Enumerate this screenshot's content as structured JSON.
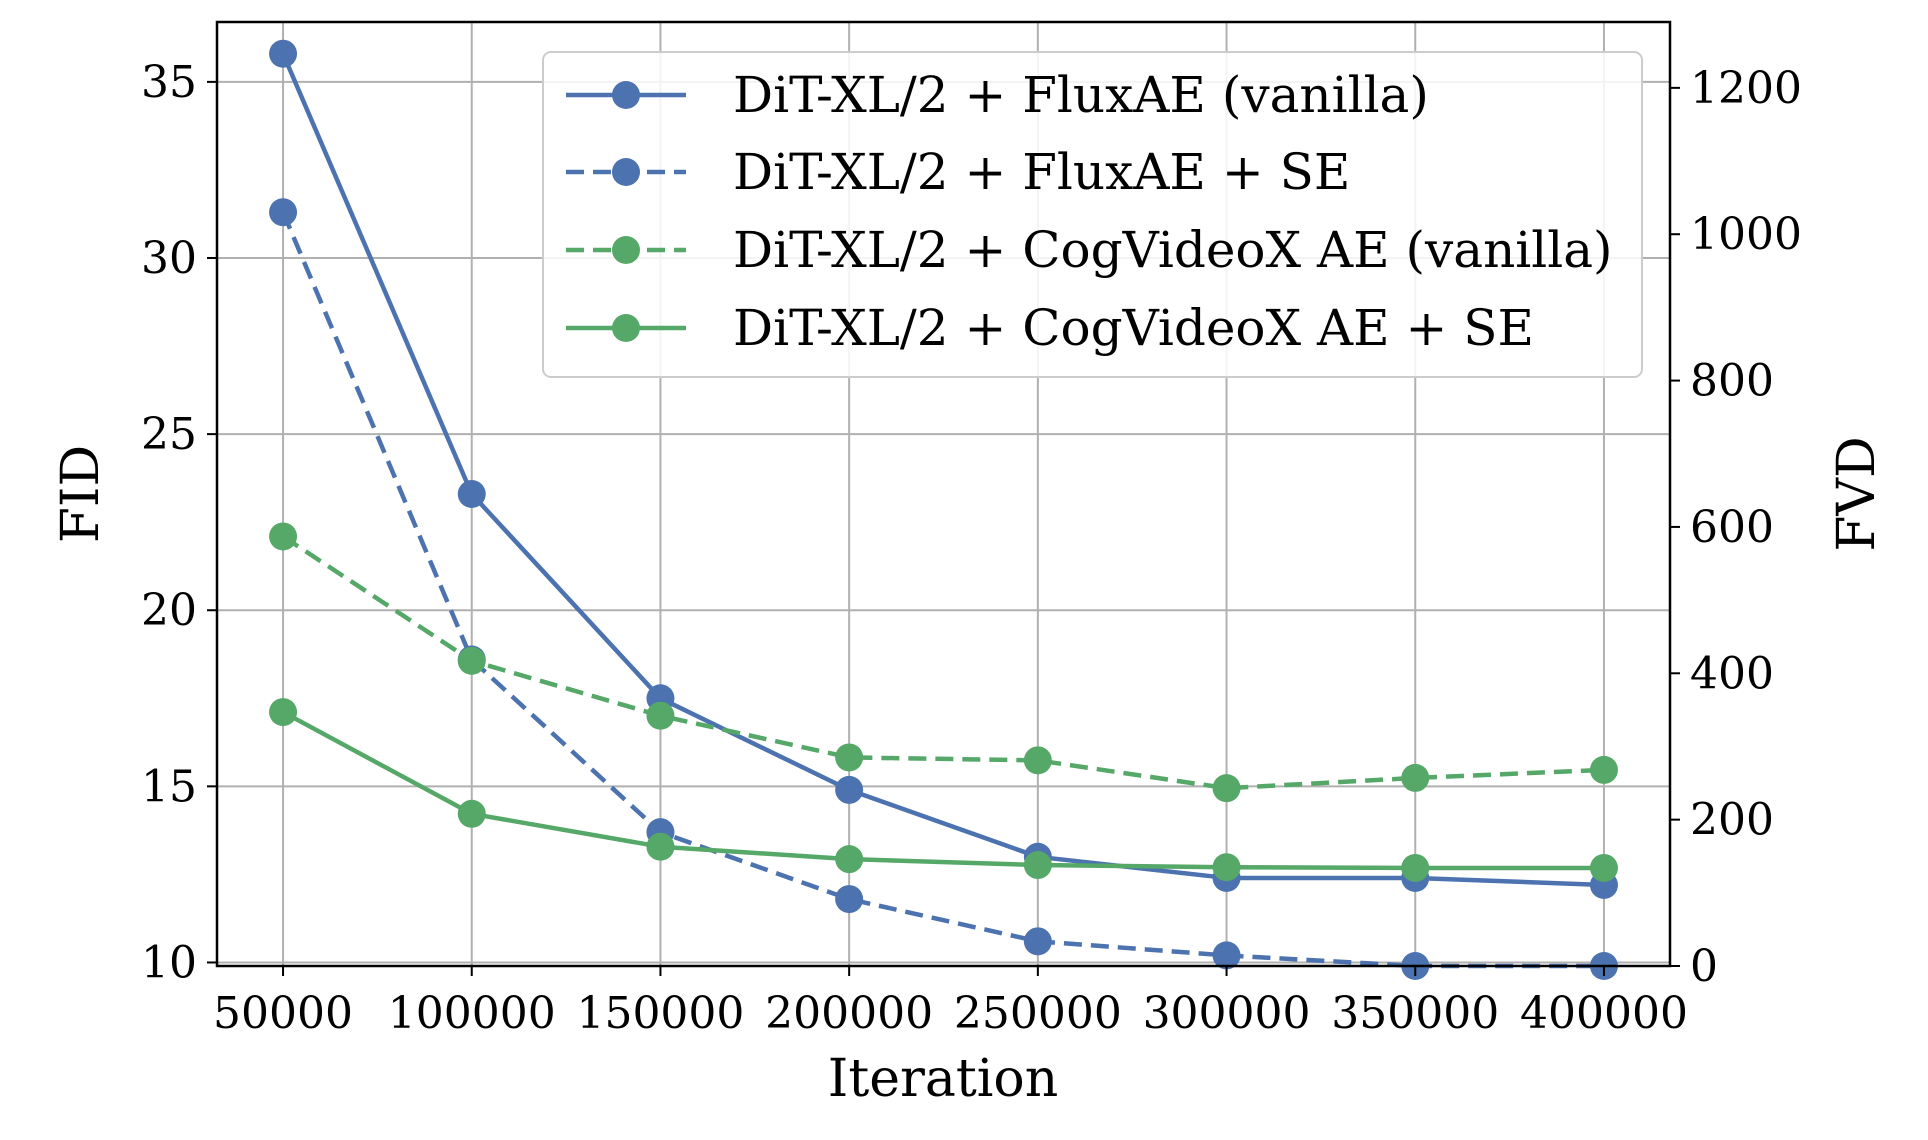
{
  "chart_data": {
    "type": "line",
    "xlabel": "Iteration",
    "ylabel_left": "FID",
    "ylabel_right": "FVD",
    "x": [
      50000,
      100000,
      150000,
      200000,
      250000,
      300000,
      350000,
      400000
    ],
    "x_tick_labels": [
      "50000",
      "100000",
      "150000",
      "200000",
      "250000",
      "300000",
      "350000",
      "400000"
    ],
    "xlim": [
      32500,
      417500
    ],
    "ylim_left": [
      9.9,
      36.7
    ],
    "ylim_right": [
      0,
      1290
    ],
    "y_ticks_left": [
      10,
      15,
      20,
      25,
      30,
      35
    ],
    "y_ticks_right": [
      0,
      200,
      400,
      600,
      800,
      1000,
      1200
    ],
    "grid": true,
    "legend_placement": "top-right",
    "series": [
      {
        "name": "DiT-XL/2 + FluxAE (vanilla)",
        "axis": "left",
        "style": "solid",
        "color": "#4C72B0",
        "values": [
          35.8,
          23.3,
          17.5,
          14.9,
          13.0,
          12.4,
          12.4,
          12.2
        ]
      },
      {
        "name": "DiT-XL/2 + FluxAE + SE",
        "axis": "left",
        "style": "dashed",
        "color": "#4C72B0",
        "values": [
          31.3,
          18.6,
          13.7,
          11.8,
          10.6,
          10.2,
          9.9,
          9.9
        ]
      },
      {
        "name": "DiT-XL/2 + CogVideoX AE (vanilla)",
        "axis": "right",
        "style": "dashed",
        "color": "#55A868",
        "values": [
          587,
          417,
          342,
          285,
          281,
          243,
          257,
          268
        ]
      },
      {
        "name": "DiT-XL/2 + CogVideoX AE + SE",
        "axis": "right",
        "style": "solid",
        "color": "#55A868",
        "values": [
          347,
          208,
          163,
          146,
          138,
          135,
          134,
          134
        ]
      }
    ]
  }
}
